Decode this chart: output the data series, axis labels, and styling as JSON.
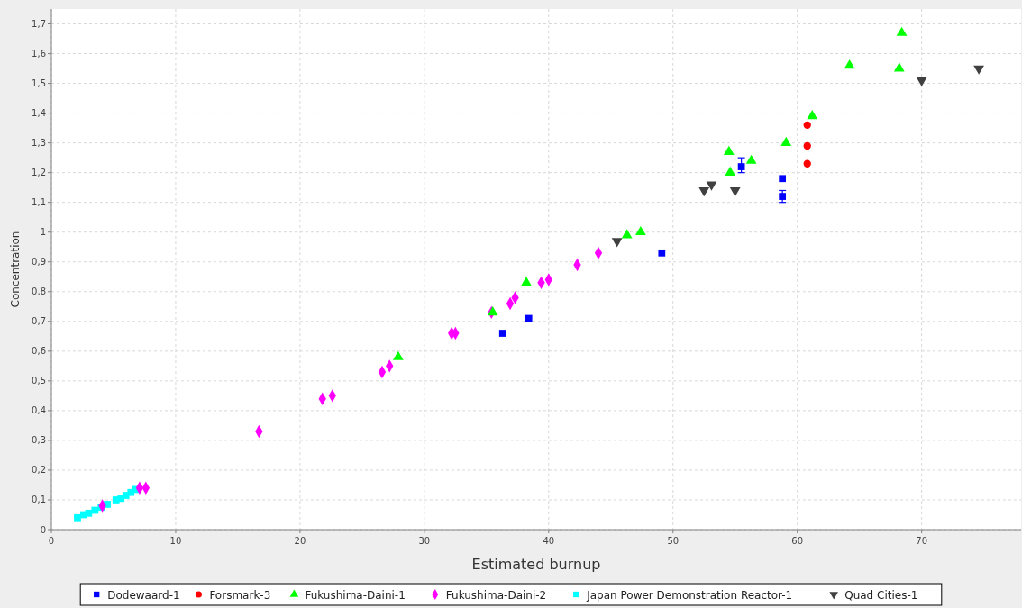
{
  "chart_data": {
    "type": "scatter",
    "xlabel": "Estimated burnup",
    "ylabel": "Concentration",
    "xlim": [
      0,
      78
    ],
    "ylim": [
      0,
      1.75
    ],
    "xticks": [
      0,
      10,
      20,
      30,
      40,
      50,
      60,
      70
    ],
    "yticks": [
      0,
      {
        "value": 0.1,
        "label": "0,1"
      },
      {
        "value": 0.2,
        "label": "0,2"
      },
      {
        "value": 0.3,
        "label": "0,3"
      },
      {
        "value": 0.4,
        "label": "0,4"
      },
      {
        "value": 0.5,
        "label": "0,5"
      },
      {
        "value": 0.6,
        "label": "0,6"
      },
      {
        "value": 0.7,
        "label": "0,7"
      },
      {
        "value": 0.8,
        "label": "0,8"
      },
      {
        "value": 0.9,
        "label": "0,9"
      },
      1,
      {
        "value": 1.1,
        "label": "1,1"
      },
      {
        "value": 1.2,
        "label": "1,2"
      },
      {
        "value": 1.3,
        "label": "1,3"
      },
      {
        "value": 1.4,
        "label": "1,4"
      },
      {
        "value": 1.5,
        "label": "1,5"
      },
      {
        "value": 1.6,
        "label": "1,6"
      },
      {
        "value": 1.7,
        "label": "1,7"
      }
    ],
    "grid": true,
    "legend": "bottom",
    "series": [
      {
        "name": "Dodewaard-1",
        "color": "#0000ff",
        "marker": "square",
        "x": [
          36.3,
          38.4,
          49.1,
          55.5,
          58.8,
          58.8
        ],
        "values": [
          0.66,
          0.71,
          0.93,
          1.22,
          1.18,
          1.12
        ],
        "errors": [
          null,
          null,
          null,
          [
            1.2,
            1.25
          ],
          null,
          [
            1.1,
            1.14
          ]
        ]
      },
      {
        "name": "Forsmark-3",
        "color": "#ff0000",
        "marker": "circle",
        "x": [
          60.8,
          60.8,
          60.8
        ],
        "values": [
          1.36,
          1.29,
          1.23
        ]
      },
      {
        "name": "Fukushima-Daini-1",
        "color": "#00ff00",
        "marker": "triangle",
        "x": [
          27.9,
          35.5,
          38.2,
          46.3,
          47.4,
          54.5,
          54.6,
          56.3,
          59.1,
          61.2,
          64.2,
          68.2,
          68.4
        ],
        "values": [
          0.58,
          0.73,
          0.83,
          0.99,
          1.0,
          1.27,
          1.2,
          1.24,
          1.3,
          1.39,
          1.56,
          1.55,
          1.67
        ]
      },
      {
        "name": "Fukushima-Daini-2",
        "color": "#ff00ff",
        "marker": "diamond",
        "x": [
          4.1,
          7.1,
          7.6,
          16.7,
          21.8,
          22.6,
          26.6,
          27.2,
          32.2,
          32.5,
          35.4,
          36.9,
          37.3,
          39.4,
          40.0,
          42.3,
          44.0
        ],
        "values": [
          0.08,
          0.14,
          0.14,
          0.33,
          0.44,
          0.45,
          0.53,
          0.55,
          0.66,
          0.66,
          0.73,
          0.76,
          0.78,
          0.83,
          0.84,
          0.89,
          0.93
        ]
      },
      {
        "name": "Japan Power Demonstration Reactor-1",
        "color": "#00ffff",
        "marker": "square",
        "x": [
          2.1,
          2.6,
          3.0,
          3.5,
          4.0,
          4.5,
          5.2,
          5.6,
          6.0,
          6.4,
          6.8
        ],
        "values": [
          0.04,
          0.05,
          0.055,
          0.065,
          0.075,
          0.085,
          0.1,
          0.105,
          0.115,
          0.125,
          0.135
        ]
      },
      {
        "name": "Quad Cities-1",
        "color": "#404040",
        "marker": "triangle-down",
        "x": [
          45.5,
          52.5,
          53.1,
          55.0,
          70.0,
          74.6
        ],
        "values": [
          0.97,
          1.14,
          1.16,
          1.14,
          1.51,
          1.55
        ]
      }
    ]
  }
}
